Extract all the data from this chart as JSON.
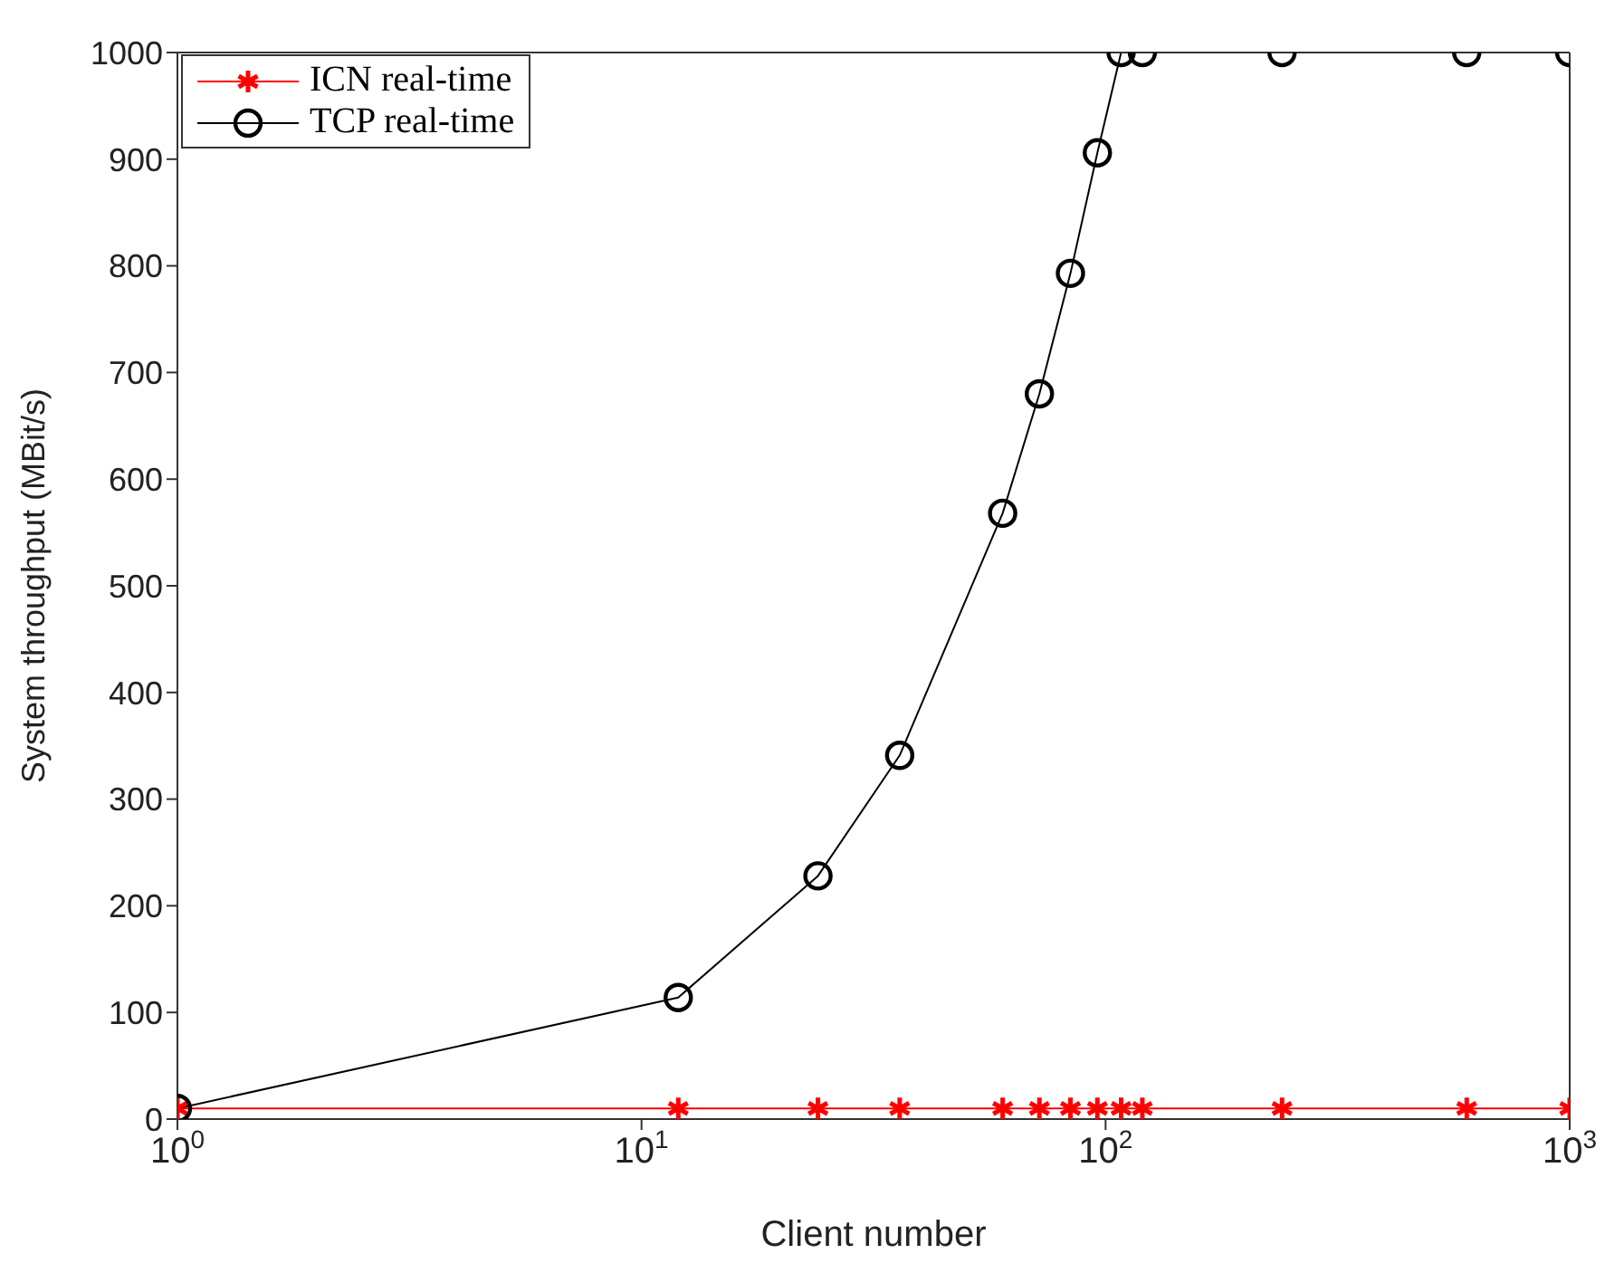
{
  "chart_data": {
    "type": "line",
    "xlabel": "Client number",
    "ylabel": "System throughput (MBit/s)",
    "log": "x",
    "x": [
      1,
      12,
      24,
      36,
      60,
      72,
      84,
      96,
      108,
      120,
      240,
      600,
      1000
    ],
    "series": [
      {
        "name": "ICN real-time",
        "color": "#ff0000",
        "marker": "cross",
        "values": [
          10,
          10,
          10,
          10,
          10,
          10,
          10,
          10,
          10,
          10,
          10,
          10,
          10
        ]
      },
      {
        "name": "TCP real-time",
        "color": "#000000",
        "marker": "circle",
        "values": [
          10,
          114,
          228,
          341,
          568,
          680,
          793,
          906,
          1000,
          1000,
          1000,
          1000,
          1000
        ]
      }
    ],
    "xlim": [
      1,
      1000
    ],
    "xticks": [
      {
        "value": 1,
        "label": "10$^{0}$"
      },
      {
        "value": 10,
        "label": "10$^{1}$"
      },
      {
        "value": 100,
        "label": "10$^{2}$"
      },
      {
        "value": 1000,
        "label": "10$^{3}$"
      }
    ],
    "ylim": [
      0,
      1000
    ],
    "yticks": [
      0,
      100,
      200,
      300,
      400,
      500,
      600,
      700,
      800,
      900,
      1000
    ],
    "grid": false,
    "legend": "top left",
    "line_style": "solid"
  }
}
